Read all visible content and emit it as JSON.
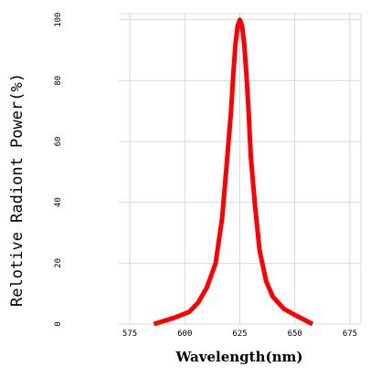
{
  "chart_data": {
    "type": "line",
    "title": "",
    "xlabel": "Wavelength(nm)",
    "ylabel": "Relotive Radiont Power(%)",
    "xlim": [
      570,
      680
    ],
    "ylim": [
      0,
      102
    ],
    "grid": true,
    "x_ticks": [
      "575",
      "600",
      "625",
      "650",
      "675"
    ],
    "y_ticks": [
      "0",
      "20",
      "40",
      "60",
      "80",
      "100"
    ],
    "colors": {
      "series": "#ff0000",
      "grid": "#d9d9d9"
    },
    "series": [
      {
        "x": [
          586,
          595,
          602,
          606,
          610,
          614,
          617,
          619,
          621,
          622,
          623,
          624,
          625,
          626,
          627,
          628,
          629,
          630,
          632,
          634,
          637,
          640,
          645,
          650,
          658
        ],
        "y": [
          0,
          2,
          4,
          7,
          12,
          20,
          35,
          52,
          70,
          82,
          92,
          98,
          100,
          98,
          92,
          82,
          70,
          55,
          38,
          24,
          14,
          9,
          5,
          3,
          0
        ]
      }
    ]
  }
}
